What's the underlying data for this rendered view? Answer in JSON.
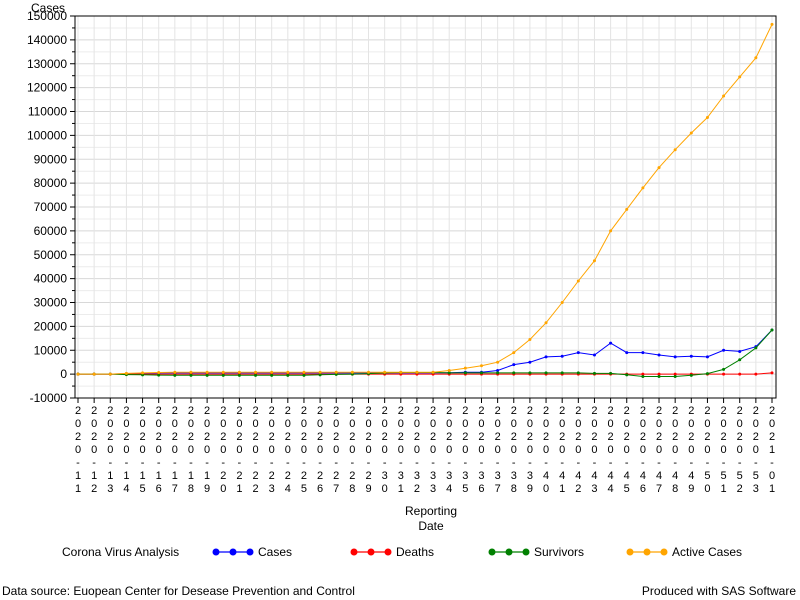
{
  "chart_data": {
    "type": "line",
    "ylabel": "Cases",
    "xlabel": [
      "Reporting",
      "Date"
    ],
    "ylim": [
      -10000,
      150000
    ],
    "yticks": [
      -10000,
      0,
      10000,
      20000,
      30000,
      40000,
      50000,
      60000,
      70000,
      80000,
      90000,
      100000,
      110000,
      120000,
      130000,
      140000,
      150000
    ],
    "grid": true,
    "legend_position": "bottom",
    "legend_title": "Corona Virus Analysis",
    "categories": [
      "2020-11",
      "2020-12",
      "2020-13",
      "2020-14",
      "2020-15",
      "2020-16",
      "2020-17",
      "2020-18",
      "2020-19",
      "2020-20",
      "2020-21",
      "2020-22",
      "2020-23",
      "2020-24",
      "2020-25",
      "2020-26",
      "2020-27",
      "2020-28",
      "2020-29",
      "2020-30",
      "2020-31",
      "2020-32",
      "2020-33",
      "2020-34",
      "2020-35",
      "2020-36",
      "2020-37",
      "2020-38",
      "2020-39",
      "2020-40",
      "2020-41",
      "2020-42",
      "2020-43",
      "2020-44",
      "2020-45",
      "2020-46",
      "2020-47",
      "2020-48",
      "2020-49",
      "2020-50",
      "2020-51",
      "2020-52",
      "2020-53",
      "2021-01"
    ],
    "series": [
      {
        "name": "Cases",
        "color": "#0000ff",
        "values": [
          0,
          0,
          0,
          200,
          300,
          500,
          500,
          500,
          500,
          500,
          500,
          500,
          500,
          500,
          500,
          500,
          500,
          500,
          500,
          500,
          500,
          500,
          500,
          600,
          800,
          800,
          1500,
          4000,
          5000,
          7200,
          7500,
          9000,
          8000,
          13000,
          9000,
          9000,
          8000,
          7200,
          7500,
          7200,
          10000,
          9500,
          11500,
          18500
        ]
      },
      {
        "name": "Deaths",
        "color": "#ff0000",
        "values": [
          0,
          0,
          0,
          0,
          0,
          0,
          0,
          0,
          0,
          0,
          0,
          0,
          0,
          0,
          0,
          0,
          0,
          0,
          0,
          0,
          0,
          0,
          0,
          0,
          0,
          0,
          0,
          0,
          0,
          0,
          0,
          0,
          0,
          0,
          0,
          0,
          0,
          0,
          0,
          0,
          0,
          0,
          0,
          500
        ]
      },
      {
        "name": "Survivors",
        "color": "#008000",
        "values": [
          0,
          0,
          0,
          -200,
          -300,
          -400,
          -500,
          -500,
          -500,
          -500,
          -500,
          -500,
          -500,
          -500,
          -500,
          -300,
          -100,
          0,
          200,
          500,
          700,
          700,
          700,
          500,
          500,
          500,
          500,
          500,
          500,
          500,
          500,
          500,
          300,
          300,
          -300,
          -1000,
          -1000,
          -1000,
          -500,
          200,
          2000,
          6000,
          11000,
          18500
        ]
      },
      {
        "name": "Active Cases",
        "color": "#ffa500",
        "values": [
          0,
          0,
          0,
          300,
          500,
          700,
          800,
          800,
          800,
          800,
          800,
          800,
          800,
          800,
          800,
          800,
          800,
          800,
          800,
          800,
          800,
          800,
          800,
          1500,
          2500,
          3500,
          5000,
          9000,
          14500,
          21500,
          30000,
          39000,
          47500,
          60000,
          69000,
          78000,
          86500,
          94000,
          101000,
          107500,
          116500,
          124500,
          132500,
          146500
        ]
      }
    ]
  },
  "footer": {
    "left": "Data source: Euopean Center for Desease Prevention and Control",
    "right": "Produced with SAS Software"
  }
}
